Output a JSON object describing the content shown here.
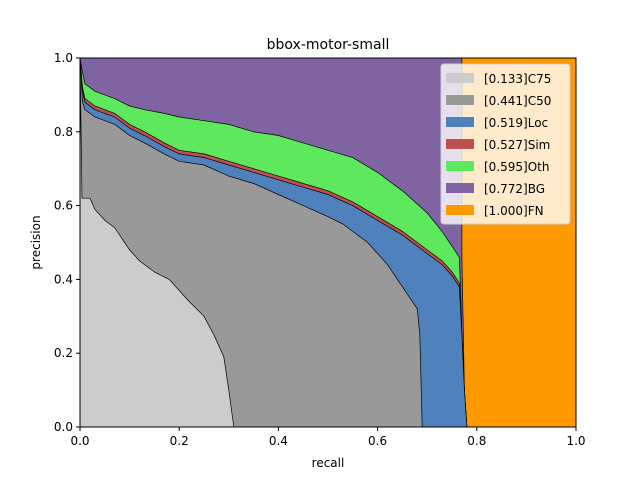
{
  "chart_data": {
    "type": "area",
    "title": "bbox-motor-small",
    "xlabel": "recall",
    "ylabel": "precision",
    "xlim": [
      0,
      1
    ],
    "ylim": [
      0,
      1
    ],
    "xticks": [
      "0.0",
      "0.2",
      "0.4",
      "0.6",
      "0.8",
      "1.0"
    ],
    "yticks": [
      "0.0",
      "0.2",
      "0.4",
      "0.6",
      "0.8",
      "1.0"
    ],
    "legend_position": "top-right",
    "grid": false,
    "series": [
      {
        "name": "[0.133]C75",
        "color": "#cccccc",
        "points": [
          [
            0,
            1.0
          ],
          [
            0.004,
            0.62
          ],
          [
            0.02,
            0.62
          ],
          [
            0.03,
            0.59
          ],
          [
            0.05,
            0.56
          ],
          [
            0.07,
            0.54
          ],
          [
            0.08,
            0.52
          ],
          [
            0.09,
            0.5
          ],
          [
            0.1,
            0.48
          ],
          [
            0.12,
            0.45
          ],
          [
            0.13,
            0.44
          ],
          [
            0.15,
            0.42
          ],
          [
            0.18,
            0.4
          ],
          [
            0.2,
            0.37
          ],
          [
            0.22,
            0.34
          ],
          [
            0.25,
            0.3
          ],
          [
            0.27,
            0.25
          ],
          [
            0.29,
            0.19
          ],
          [
            0.3,
            0.1
          ],
          [
            0.305,
            0.05
          ],
          [
            0.31,
            0.0
          ]
        ]
      },
      {
        "name": "[0.441]C50",
        "color": "#999999",
        "points": [
          [
            0,
            1.0
          ],
          [
            0.005,
            0.88
          ],
          [
            0.01,
            0.86
          ],
          [
            0.03,
            0.84
          ],
          [
            0.05,
            0.83
          ],
          [
            0.07,
            0.82
          ],
          [
            0.1,
            0.79
          ],
          [
            0.13,
            0.77
          ],
          [
            0.17,
            0.74
          ],
          [
            0.2,
            0.72
          ],
          [
            0.25,
            0.71
          ],
          [
            0.3,
            0.68
          ],
          [
            0.35,
            0.66
          ],
          [
            0.4,
            0.63
          ],
          [
            0.45,
            0.6
          ],
          [
            0.5,
            0.57
          ],
          [
            0.53,
            0.55
          ],
          [
            0.56,
            0.52
          ],
          [
            0.58,
            0.5
          ],
          [
            0.6,
            0.47
          ],
          [
            0.62,
            0.44
          ],
          [
            0.64,
            0.4
          ],
          [
            0.66,
            0.36
          ],
          [
            0.68,
            0.32
          ],
          [
            0.685,
            0.25
          ],
          [
            0.69,
            0.0
          ]
        ]
      },
      {
        "name": "[0.519]Loc",
        "color": "#4f81bd",
        "points": [
          [
            0,
            1.0
          ],
          [
            0.005,
            0.91
          ],
          [
            0.01,
            0.88
          ],
          [
            0.03,
            0.86
          ],
          [
            0.05,
            0.85
          ],
          [
            0.07,
            0.84
          ],
          [
            0.1,
            0.81
          ],
          [
            0.13,
            0.79
          ],
          [
            0.17,
            0.76
          ],
          [
            0.2,
            0.74
          ],
          [
            0.25,
            0.73
          ],
          [
            0.3,
            0.71
          ],
          [
            0.35,
            0.69
          ],
          [
            0.4,
            0.67
          ],
          [
            0.45,
            0.65
          ],
          [
            0.5,
            0.63
          ],
          [
            0.55,
            0.6
          ],
          [
            0.6,
            0.56
          ],
          [
            0.65,
            0.52
          ],
          [
            0.7,
            0.47
          ],
          [
            0.73,
            0.44
          ],
          [
            0.75,
            0.41
          ],
          [
            0.765,
            0.38
          ],
          [
            0.77,
            0.25
          ],
          [
            0.775,
            0.1
          ],
          [
            0.78,
            0.0
          ]
        ]
      },
      {
        "name": "[0.527]Sim",
        "color": "#c0504d",
        "points": [
          [
            0,
            1.0
          ],
          [
            0.005,
            0.92
          ],
          [
            0.01,
            0.89
          ],
          [
            0.03,
            0.87
          ],
          [
            0.05,
            0.86
          ],
          [
            0.07,
            0.85
          ],
          [
            0.1,
            0.82
          ],
          [
            0.13,
            0.8
          ],
          [
            0.17,
            0.77
          ],
          [
            0.2,
            0.75
          ],
          [
            0.25,
            0.74
          ],
          [
            0.3,
            0.72
          ],
          [
            0.35,
            0.7
          ],
          [
            0.4,
            0.68
          ],
          [
            0.45,
            0.66
          ],
          [
            0.5,
            0.64
          ],
          [
            0.55,
            0.61
          ],
          [
            0.6,
            0.57
          ],
          [
            0.65,
            0.53
          ],
          [
            0.7,
            0.48
          ],
          [
            0.73,
            0.45
          ],
          [
            0.75,
            0.42
          ],
          [
            0.765,
            0.39
          ],
          [
            0.77,
            0.25
          ],
          [
            0.775,
            0.1
          ],
          [
            0.78,
            0.0
          ]
        ]
      },
      {
        "name": "[0.595]Oth",
        "color": "#5de85d",
        "points": [
          [
            0,
            1.0
          ],
          [
            0.005,
            0.96
          ],
          [
            0.01,
            0.93
          ],
          [
            0.03,
            0.91
          ],
          [
            0.05,
            0.9
          ],
          [
            0.07,
            0.89
          ],
          [
            0.1,
            0.87
          ],
          [
            0.13,
            0.86
          ],
          [
            0.17,
            0.85
          ],
          [
            0.2,
            0.84
          ],
          [
            0.25,
            0.83
          ],
          [
            0.3,
            0.82
          ],
          [
            0.35,
            0.8
          ],
          [
            0.4,
            0.79
          ],
          [
            0.45,
            0.77
          ],
          [
            0.5,
            0.75
          ],
          [
            0.55,
            0.73
          ],
          [
            0.6,
            0.69
          ],
          [
            0.65,
            0.64
          ],
          [
            0.7,
            0.58
          ],
          [
            0.73,
            0.53
          ],
          [
            0.75,
            0.49
          ],
          [
            0.765,
            0.46
          ],
          [
            0.77,
            0.25
          ],
          [
            0.775,
            0.1
          ],
          [
            0.78,
            0.0
          ]
        ]
      },
      {
        "name": "[0.772]BG",
        "color": "#8064a2",
        "points": [
          [
            0,
            1.0
          ],
          [
            0.77,
            1.0
          ],
          [
            0.77,
            0.46
          ],
          [
            0.775,
            0.1
          ],
          [
            0.78,
            0.0
          ]
        ]
      },
      {
        "name": "[1.000]FN",
        "color": "#ff9900",
        "points": [
          [
            0,
            1.0
          ],
          [
            1.0,
            1.0
          ],
          [
            1.0,
            0.0
          ]
        ]
      }
    ]
  }
}
